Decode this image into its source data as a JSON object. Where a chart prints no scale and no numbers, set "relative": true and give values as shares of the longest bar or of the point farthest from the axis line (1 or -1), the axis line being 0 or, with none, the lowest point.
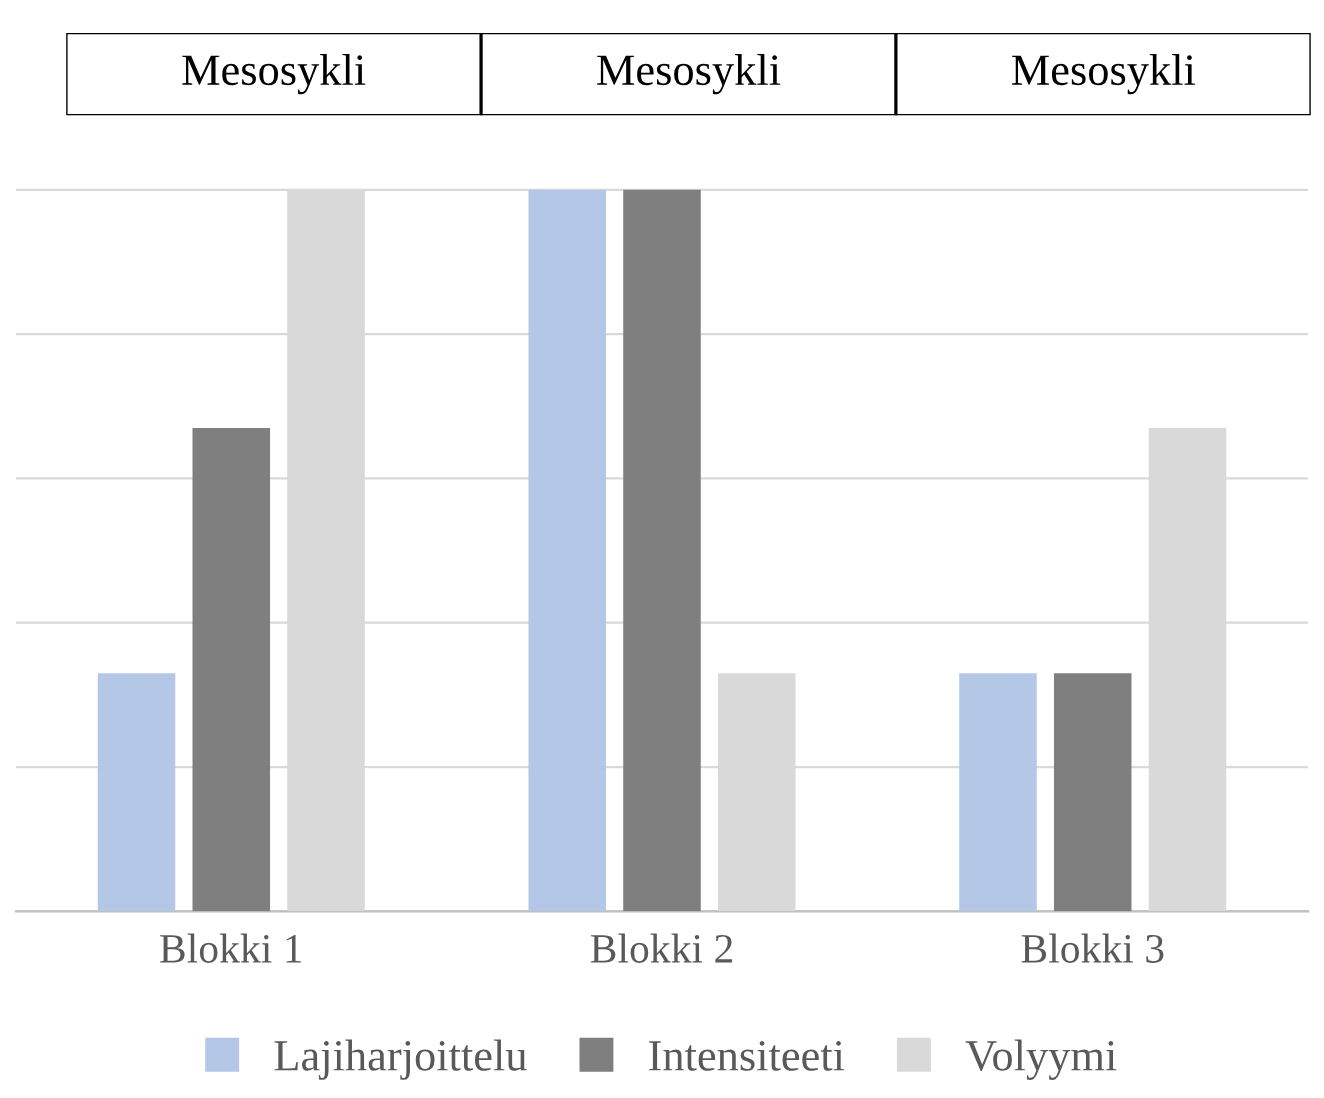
{
  "chart_data": {
    "type": "bar",
    "relative": true,
    "categories": [
      "Blokki 1",
      "Blokki 2",
      "Blokki 3"
    ],
    "series": [
      {
        "name": "Lajiharjoittelu",
        "color": "#b4c7e7",
        "values": [
          0.33,
          1,
          0.33
        ]
      },
      {
        "name": "Intensiteeti",
        "color": "#7f7f7f",
        "values": [
          0.67,
          1,
          0.33
        ]
      },
      {
        "name": "Volyymi",
        "color": "#d9d9d9",
        "values": [
          1,
          0.33,
          0.67
        ]
      }
    ],
    "annotations": [
      "Mesosykli",
      "Mesosykli",
      "Mesosykli"
    ],
    "grid": "y",
    "legend": "bottom"
  }
}
